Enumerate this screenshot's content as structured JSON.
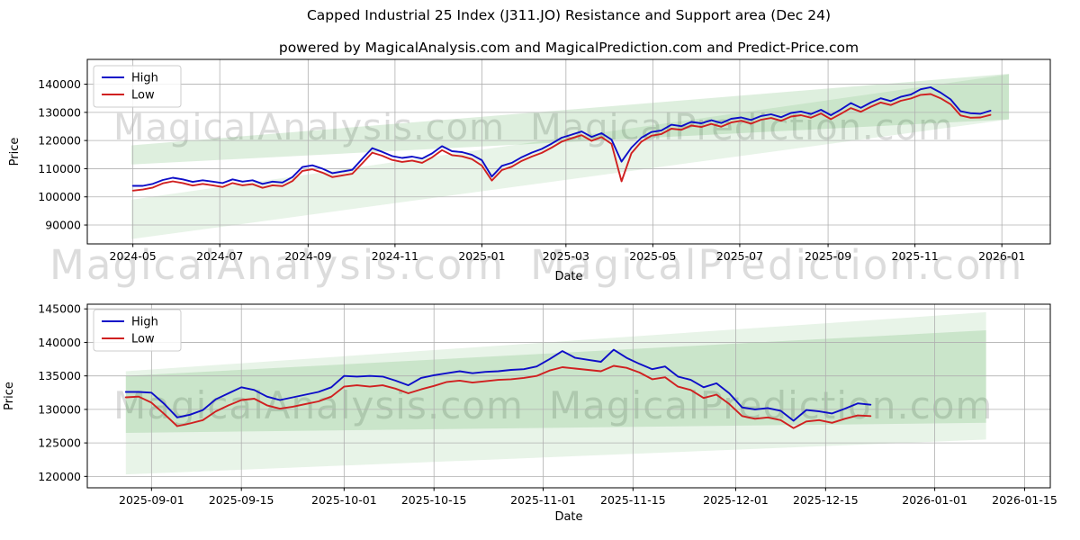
{
  "title": "Capped Industrial 25 Index (J311.JO) Resistance and Support area (Dec 24)",
  "subtitle": "powered by MagicalAnalysis.com and MagicalPrediction.com and Predict-Price.com",
  "watermark": {
    "text_left": "MagicalAnalysis.com",
    "text_right": "MagicalPrediction.com"
  },
  "colors": {
    "high_line": "#0e0ec8",
    "low_line": "#d02020",
    "grid": "#b0b0b0",
    "frame": "#000000",
    "support_band": "rgba(0,128,0,0.09)",
    "resistance_band": "rgba(0,128,0,0.13)"
  },
  "chart_data": [
    {
      "name": "full-history",
      "type": "line",
      "x_axis": {
        "label": "Date",
        "min": "2024-03-30",
        "max": "2026-02-04",
        "ticks": [
          {
            "date": "2024-05-01",
            "label": "2024-05"
          },
          {
            "date": "2024-07-01",
            "label": "2024-07"
          },
          {
            "date": "2024-09-01",
            "label": "2024-09"
          },
          {
            "date": "2024-11-01",
            "label": "2024-11"
          },
          {
            "date": "2025-01-01",
            "label": "2025-01"
          },
          {
            "date": "2025-03-01",
            "label": "2025-03"
          },
          {
            "date": "2025-05-01",
            "label": "2025-05"
          },
          {
            "date": "2025-07-01",
            "label": "2025-07"
          },
          {
            "date": "2025-09-01",
            "label": "2025-09"
          },
          {
            "date": "2025-11-01",
            "label": "2025-11"
          },
          {
            "date": "2026-01-01",
            "label": "2026-01"
          }
        ]
      },
      "y_axis": {
        "label": "Price",
        "min": 83300,
        "max": 148800,
        "ticks": [
          90000,
          100000,
          110000,
          120000,
          130000,
          140000
        ]
      },
      "legend": {
        "location": "upper-left",
        "entries": [
          "High",
          "Low"
        ]
      },
      "bands": [
        {
          "label": "support-area",
          "x_start": "2024-04-30",
          "x_end": "2026-01-06",
          "y_start_bottom": 85000,
          "y_start_top": 99000,
          "y_end_bottom": 127500,
          "y_end_top": 143500,
          "color_key": "support_band"
        },
        {
          "label": "resistance-area",
          "x_start": "2024-04-30",
          "x_end": "2026-01-06",
          "y_start_bottom": 111500,
          "y_start_top": 118300,
          "y_end_bottom": 127500,
          "y_end_top": 143700,
          "color_key": "resistance_band"
        }
      ],
      "series": [
        {
          "name": "High",
          "color_key": "high_line",
          "start": "2024-05-01",
          "step_days": 7,
          "values": [
            103900,
            103900,
            104600,
            106000,
            106800,
            106200,
            105300,
            105900,
            105400,
            104900,
            106200,
            105400,
            105900,
            104600,
            105400,
            105100,
            107000,
            110600,
            111200,
            110000,
            108400,
            109000,
            109600,
            113500,
            117300,
            116000,
            114500,
            113800,
            114300,
            113600,
            115400,
            118000,
            116200,
            115900,
            114900,
            113000,
            107200,
            111000,
            112100,
            114100,
            115700,
            117000,
            118900,
            121000,
            122100,
            123200,
            121300,
            122600,
            120300,
            112500,
            117500,
            121000,
            123000,
            123600,
            125600,
            125100,
            126600,
            126100,
            127200,
            126200,
            127700,
            128200,
            127300,
            128700,
            129300,
            128300,
            129800,
            130300,
            129400,
            130900,
            129000,
            131000,
            133300,
            131600,
            133500,
            135000,
            134000,
            135500,
            136300,
            138200,
            138900,
            137000,
            134600,
            130400,
            129700,
            129500,
            130600
          ]
        },
        {
          "name": "Low",
          "color_key": "low_line",
          "start": "2024-05-01",
          "step_days": 7,
          "values": [
            102200,
            102600,
            103300,
            104800,
            105500,
            104900,
            104000,
            104600,
            104100,
            103500,
            104900,
            104100,
            104500,
            103200,
            104100,
            103800,
            105600,
            109200,
            109800,
            108600,
            107000,
            107600,
            108200,
            111900,
            115700,
            114600,
            113100,
            112400,
            112900,
            112100,
            114000,
            116600,
            114800,
            114400,
            113400,
            111100,
            105800,
            109500,
            110700,
            112800,
            114300,
            115600,
            117500,
            119600,
            120800,
            121900,
            119900,
            121200,
            118800,
            105500,
            115500,
            119600,
            121700,
            122300,
            124200,
            123800,
            125300,
            124800,
            125900,
            124900,
            126400,
            127000,
            126000,
            127400,
            128000,
            127000,
            128500,
            129000,
            128100,
            129600,
            127600,
            129500,
            131500,
            130200,
            132000,
            133500,
            132600,
            134100,
            134900,
            136200,
            136500,
            135000,
            132900,
            128900,
            128100,
            128200,
            129100
          ]
        }
      ]
    },
    {
      "name": "recent-daily",
      "type": "line",
      "x_axis": {
        "label": "Date",
        "min": "2025-08-22",
        "max": "2026-01-19",
        "ticks": [
          {
            "date": "2025-09-01",
            "label": "2025-09-01"
          },
          {
            "date": "2025-09-15",
            "label": "2025-09-15"
          },
          {
            "date": "2025-10-01",
            "label": "2025-10-01"
          },
          {
            "date": "2025-10-15",
            "label": "2025-10-15"
          },
          {
            "date": "2025-11-01",
            "label": "2025-11-01"
          },
          {
            "date": "2025-11-15",
            "label": "2025-11-15"
          },
          {
            "date": "2025-12-01",
            "label": "2025-12-01"
          },
          {
            "date": "2025-12-15",
            "label": "2025-12-15"
          },
          {
            "date": "2026-01-01",
            "label": "2026-01-01"
          },
          {
            "date": "2026-01-15",
            "label": "2026-01-15"
          }
        ]
      },
      "y_axis": {
        "label": "Price",
        "min": 118300,
        "max": 145700,
        "ticks": [
          120000,
          125000,
          130000,
          135000,
          140000,
          145000
        ]
      },
      "legend": {
        "location": "upper-left",
        "entries": [
          "High",
          "Low"
        ]
      },
      "bands": [
        {
          "label": "support-area",
          "x_start": "2025-08-28",
          "x_end": "2026-01-09",
          "y_start_bottom": 120300,
          "y_start_top": 135700,
          "y_end_bottom": 125500,
          "y_end_top": 144500,
          "color_key": "support_band"
        },
        {
          "label": "resistance-area",
          "x_start": "2025-08-28",
          "x_end": "2026-01-09",
          "y_start_bottom": 126500,
          "y_start_top": 135000,
          "y_end_bottom": 128000,
          "y_end_top": 141800,
          "color_key": "resistance_band"
        }
      ],
      "series": [
        {
          "name": "High",
          "color_key": "high_line",
          "start": "2025-08-28",
          "step_days": 2,
          "values": [
            132600,
            132600,
            132500,
            130800,
            128800,
            129200,
            129900,
            131500,
            132400,
            133300,
            132900,
            131900,
            131400,
            131800,
            132200,
            132600,
            133300,
            135000,
            134900,
            135000,
            134900,
            134300,
            133600,
            134700,
            135100,
            135400,
            135700,
            135400,
            135600,
            135700,
            135900,
            136000,
            136400,
            137500,
            138700,
            137700,
            137400,
            137100,
            138900,
            137700,
            136800,
            136000,
            136400,
            134900,
            134400,
            133300,
            133900,
            132400,
            130300,
            130000,
            130200,
            129800,
            128300,
            129900,
            129700,
            129400,
            130100,
            130900,
            130700
          ]
        },
        {
          "name": "Low",
          "color_key": "low_line",
          "start": "2025-08-28",
          "step_days": 2,
          "values": [
            131800,
            131900,
            131000,
            129300,
            127500,
            127900,
            128400,
            129700,
            130600,
            131400,
            131600,
            130600,
            130100,
            130400,
            130800,
            131200,
            131900,
            133400,
            133600,
            133400,
            133600,
            133100,
            132400,
            133000,
            133500,
            134100,
            134300,
            134000,
            134200,
            134400,
            134500,
            134700,
            135000,
            135800,
            136300,
            136100,
            135900,
            135700,
            136500,
            136200,
            135500,
            134500,
            134800,
            133400,
            132900,
            131700,
            132200,
            130800,
            129000,
            128600,
            128800,
            128400,
            127200,
            128200,
            128400,
            128000,
            128600,
            129100,
            129000
          ]
        }
      ]
    }
  ]
}
